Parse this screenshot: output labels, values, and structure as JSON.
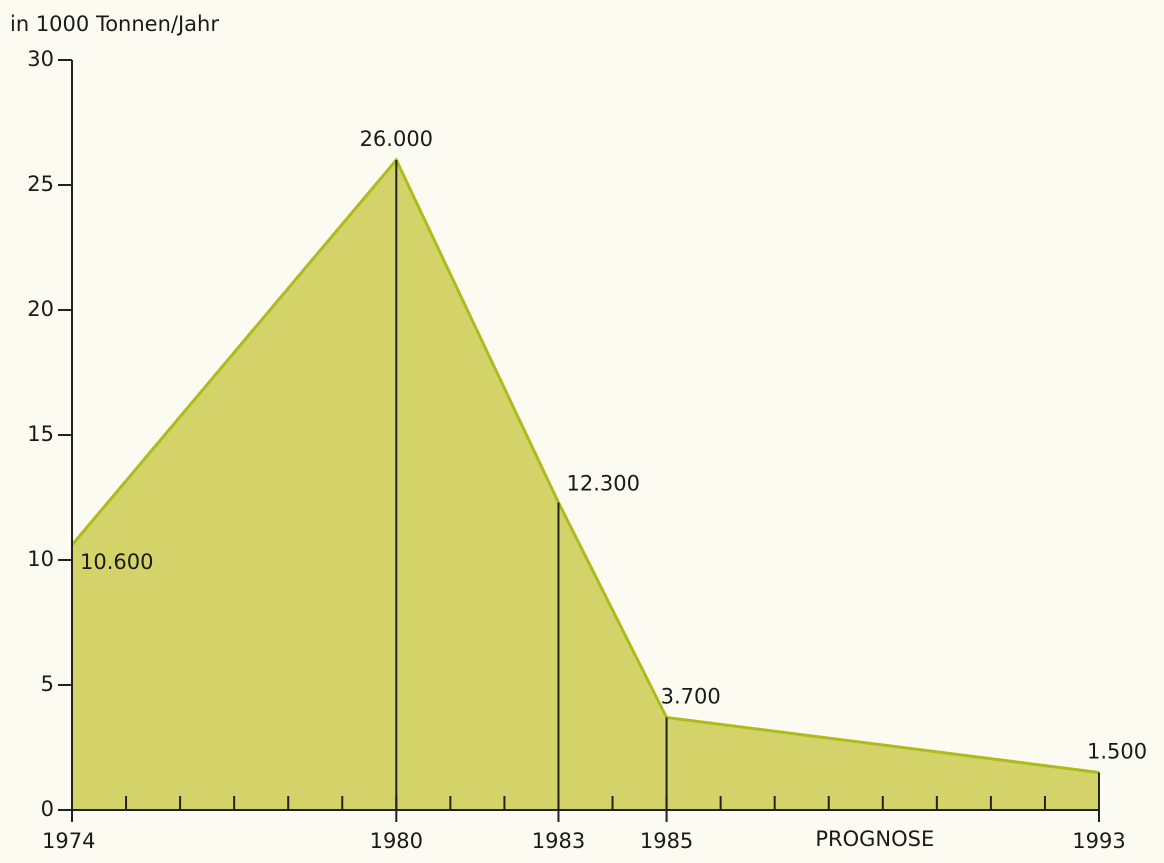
{
  "chart_data": {
    "type": "area",
    "y_axis_label": "in 1000 Tonnen/Jahr",
    "x": [
      1974,
      1980,
      1983,
      1985,
      1993
    ],
    "values": [
      10.6,
      26,
      12.3,
      3.7,
      1.5
    ],
    "value_labels": [
      "10.600",
      "26.000",
      "12.300",
      "3.700",
      "1.500"
    ],
    "xlim": [
      1974,
      1993
    ],
    "xticks": [
      1974,
      1980,
      1983,
      1985,
      1993
    ],
    "minor_xtick_step": 1,
    "ylim": [
      0,
      30
    ],
    "yticks": [
      0,
      5,
      10,
      15,
      20,
      25,
      30
    ],
    "annotation": "PROGNOSE",
    "fill_color": "#d3d36a",
    "line_color": "#aebb1c",
    "drop_lines": true,
    "grid": false
  }
}
